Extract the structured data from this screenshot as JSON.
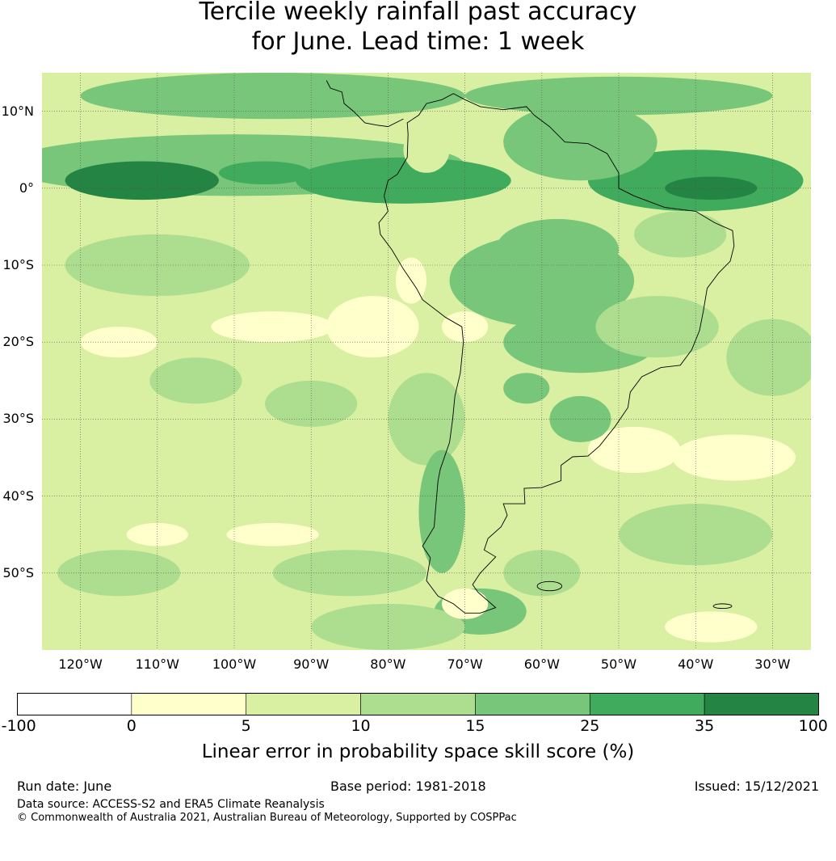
{
  "title_line1": "Tercile weekly rainfall past accuracy",
  "title_line2": "for June. Lead time: 1 week",
  "map": {
    "lon_range": [
      -125,
      -25
    ],
    "lat_range": [
      -60,
      15
    ],
    "lat_labels": [
      {
        "lat": 10,
        "text": "10°N"
      },
      {
        "lat": 0,
        "text": "0°"
      },
      {
        "lat": -10,
        "text": "10°S"
      },
      {
        "lat": -20,
        "text": "20°S"
      },
      {
        "lat": -30,
        "text": "30°S"
      },
      {
        "lat": -40,
        "text": "40°S"
      },
      {
        "lat": -50,
        "text": "50°S"
      }
    ],
    "lon_labels": [
      {
        "lon": -120,
        "text": "120°W"
      },
      {
        "lon": -110,
        "text": "110°W"
      },
      {
        "lon": -100,
        "text": "100°W"
      },
      {
        "lon": -90,
        "text": "90°W"
      },
      {
        "lon": -80,
        "text": "80°W"
      },
      {
        "lon": -70,
        "text": "70°W"
      },
      {
        "lon": -60,
        "text": "60°W"
      },
      {
        "lon": -50,
        "text": "50°W"
      },
      {
        "lon": -40,
        "text": "40°W"
      },
      {
        "lon": -30,
        "text": "30°W"
      }
    ]
  },
  "colorbar": {
    "bins": [
      {
        "from": "-100",
        "to": "0",
        "color": "#ffffff"
      },
      {
        "from": "0",
        "to": "5",
        "color": "#ffffcc"
      },
      {
        "from": "5",
        "to": "10",
        "color": "#d9f0a3"
      },
      {
        "from": "10",
        "to": "15",
        "color": "#addd8e"
      },
      {
        "from": "15",
        "to": "25",
        "color": "#78c679"
      },
      {
        "from": "25",
        "to": "35",
        "color": "#41ab5d"
      },
      {
        "from": "35",
        "to": "100",
        "color": "#238443"
      }
    ],
    "ticks": [
      "-100",
      "0",
      "5",
      "10",
      "15",
      "25",
      "35",
      "100"
    ],
    "label": "Linear error in probability space skill score (%)"
  },
  "footer": {
    "run_date": "Run date: June",
    "base_period": "Base period: 1981-2018",
    "issued": "Issued: 15/12/2021",
    "data_source": "Data source: ACCESS-S2 and ERA5 Climate Reanalysis",
    "copyright": "© Commonwealth of Australia 2021, Australian Bureau of Meteorology, Supported by COSPPac"
  }
}
